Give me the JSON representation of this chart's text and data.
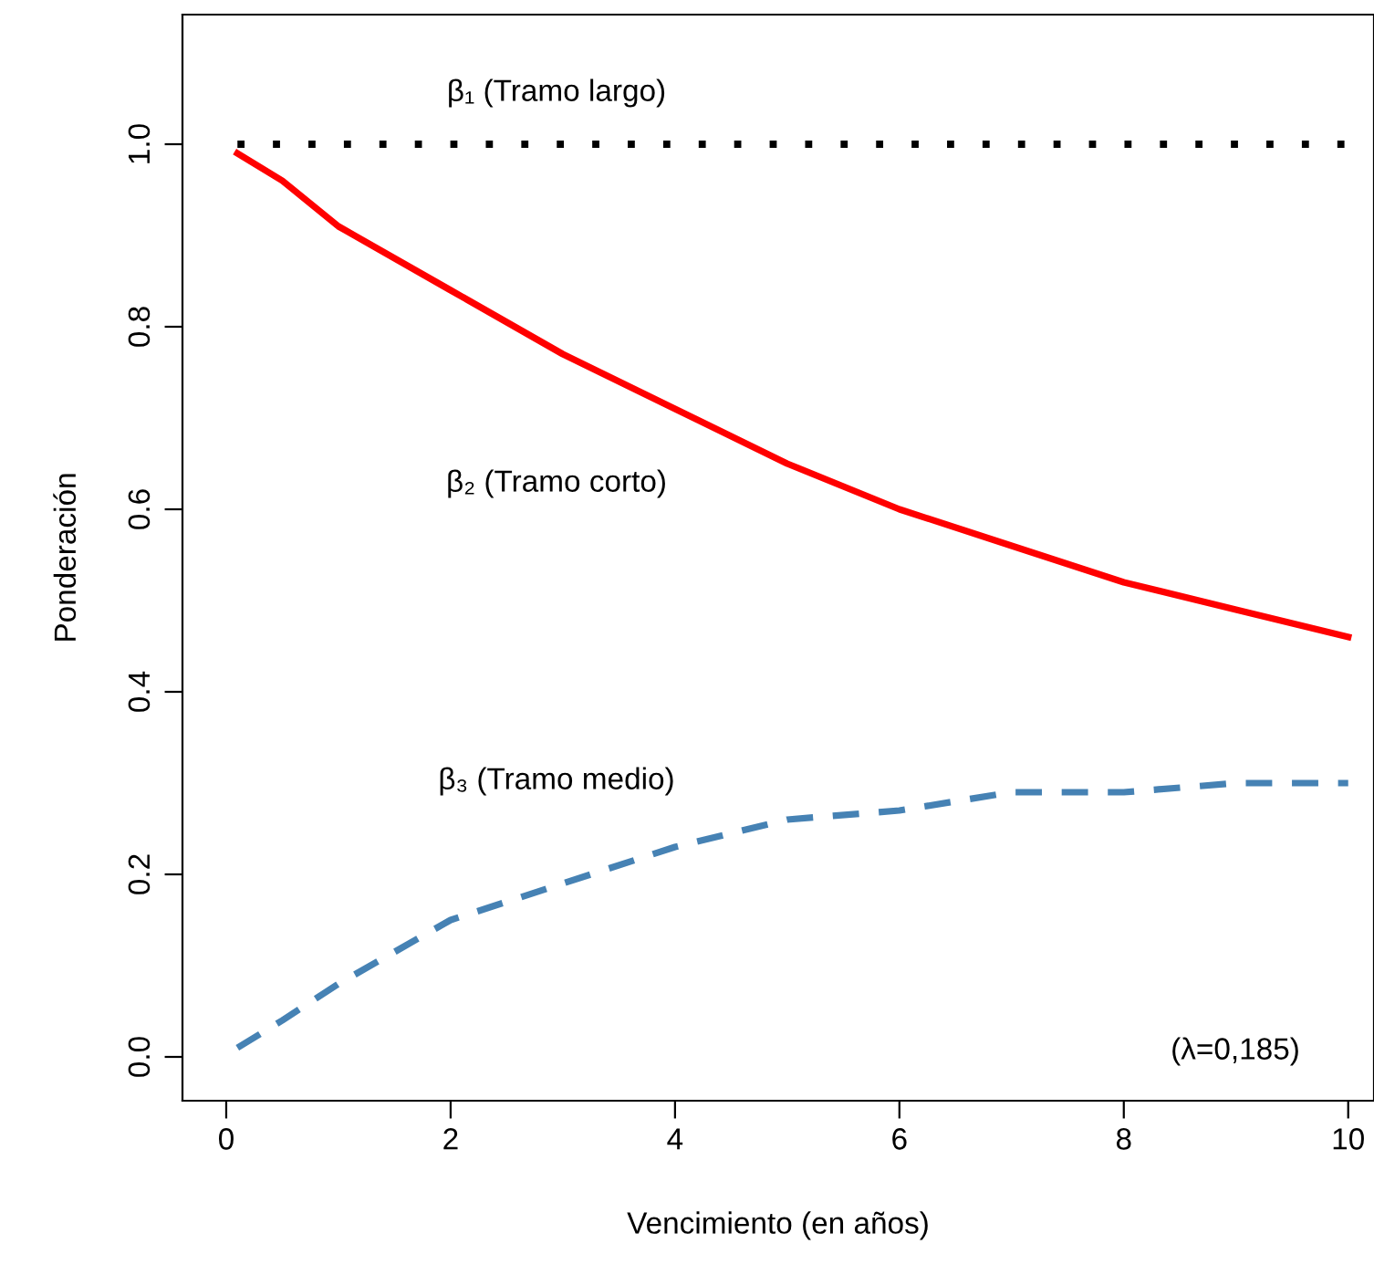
{
  "chart_data": {
    "type": "line",
    "xlabel": "Vencimiento (en años)",
    "ylabel": "Ponderación",
    "x": [
      0.1,
      0.5,
      1,
      2,
      3,
      4,
      5,
      6,
      7,
      8,
      9,
      10
    ],
    "series": [
      {
        "color": "#000000",
        "line_style": "dotted",
        "values": [
          1,
          1,
          1,
          1,
          1,
          1,
          1,
          1,
          1,
          1,
          1,
          1
        ]
      },
      {
        "color": "#ff0000",
        "line_style": "solid",
        "values": [
          0.99,
          0.96,
          0.91,
          0.84,
          0.77,
          0.71,
          0.65,
          0.6,
          0.56,
          0.52,
          0.49,
          0.46
        ]
      },
      {
        "color": "#4682b4",
        "line_style": "dashed",
        "values": [
          0.01,
          0.04,
          0.08,
          0.15,
          0.19,
          0.23,
          0.26,
          0.27,
          0.29,
          0.29,
          0.3,
          0.3
        ]
      }
    ],
    "xlim": [
      -0.39,
      10.23
    ],
    "ylim": [
      -0.048,
      1.142
    ],
    "xticks": [
      0,
      2,
      4,
      6,
      8,
      10
    ],
    "yticks": [
      {
        "value": 0,
        "label": "0.0"
      },
      {
        "value": 0.2,
        "label": "0.2"
      },
      {
        "value": 0.4,
        "label": "0.4"
      },
      {
        "value": 0.6,
        "label": "0.6"
      },
      {
        "value": 0.8,
        "label": "0.8"
      },
      {
        "value": 1,
        "label": "1.0"
      }
    ],
    "annotations": [
      "β₁ (Tramo largo)",
      "β₂ (Tramo corto)",
      "β₃ (Tramo medio)",
      "(λ=0,185)"
    ],
    "grid": false,
    "legend": false
  }
}
